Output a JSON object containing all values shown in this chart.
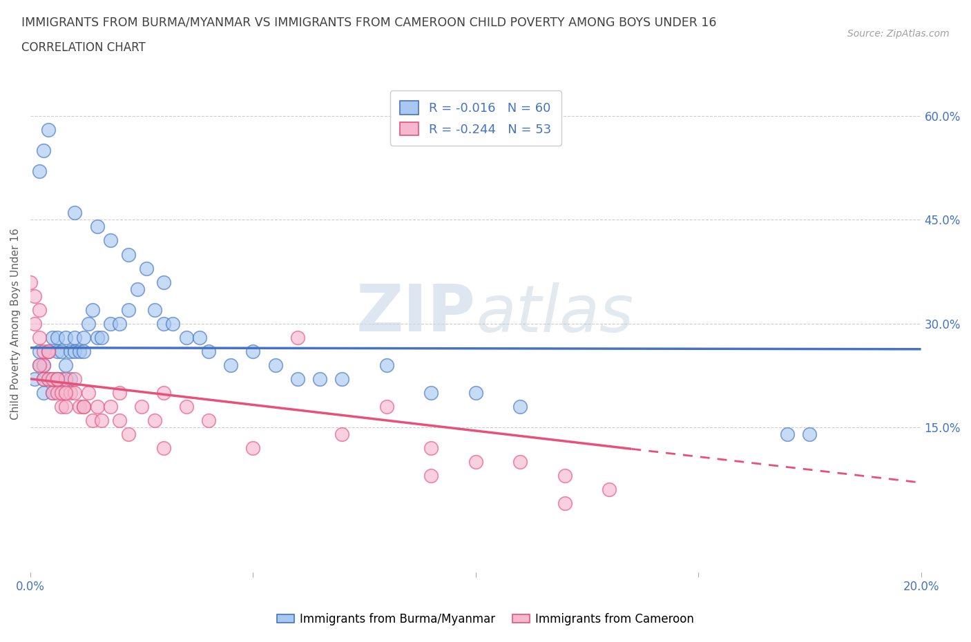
{
  "title_line1": "IMMIGRANTS FROM BURMA/MYANMAR VS IMMIGRANTS FROM CAMEROON CHILD POVERTY AMONG BOYS UNDER 16",
  "title_line2": "CORRELATION CHART",
  "source_text": "Source: ZipAtlas.com",
  "ylabel": "Child Poverty Among Boys Under 16",
  "watermark_zip": "ZIP",
  "watermark_atlas": "atlas",
  "xlim": [
    0.0,
    0.2
  ],
  "ylim": [
    -0.06,
    0.66
  ],
  "legend_r1": "-0.016",
  "legend_n1": "60",
  "legend_r2": "-0.244",
  "legend_n2": "53",
  "color_burma": "#a8c8f0",
  "color_cameroon": "#f5b8cf",
  "color_line_burma": "#4472c4",
  "color_line_cameroon": "#e8507a",
  "grid_color": "#cccccc",
  "background_color": "#ffffff",
  "title_color": "#404040",
  "source_color": "#a0a0a0",
  "tick_color": "#4472c4",
  "ylabel_color": "#606060",
  "burma_trend_y0": 0.265,
  "burma_trend_y1": 0.263,
  "cameroon_trend_y0": 0.22,
  "cameroon_trend_y1": 0.07,
  "burma_x": [
    0.001,
    0.002,
    0.002,
    0.003,
    0.003,
    0.003,
    0.004,
    0.004,
    0.005,
    0.005,
    0.005,
    0.006,
    0.006,
    0.006,
    0.007,
    0.007,
    0.008,
    0.008,
    0.009,
    0.009,
    0.01,
    0.01,
    0.011,
    0.012,
    0.012,
    0.013,
    0.014,
    0.015,
    0.016,
    0.018,
    0.02,
    0.022,
    0.024,
    0.026,
    0.028,
    0.03,
    0.032,
    0.035,
    0.038,
    0.04,
    0.045,
    0.05,
    0.055,
    0.06,
    0.065,
    0.07,
    0.08,
    0.09,
    0.1,
    0.11,
    0.002,
    0.003,
    0.004,
    0.01,
    0.015,
    0.018,
    0.022,
    0.03,
    0.17,
    0.175
  ],
  "burma_y": [
    0.22,
    0.24,
    0.26,
    0.2,
    0.22,
    0.24,
    0.22,
    0.26,
    0.2,
    0.22,
    0.28,
    0.22,
    0.26,
    0.28,
    0.22,
    0.26,
    0.24,
    0.28,
    0.22,
    0.26,
    0.26,
    0.28,
    0.26,
    0.26,
    0.28,
    0.3,
    0.32,
    0.28,
    0.28,
    0.3,
    0.3,
    0.32,
    0.35,
    0.38,
    0.32,
    0.3,
    0.3,
    0.28,
    0.28,
    0.26,
    0.24,
    0.26,
    0.24,
    0.22,
    0.22,
    0.22,
    0.24,
    0.2,
    0.2,
    0.18,
    0.52,
    0.55,
    0.58,
    0.46,
    0.44,
    0.42,
    0.4,
    0.36,
    0.14,
    0.14
  ],
  "cameroon_x": [
    0.0,
    0.001,
    0.001,
    0.002,
    0.002,
    0.003,
    0.003,
    0.003,
    0.004,
    0.004,
    0.005,
    0.005,
    0.006,
    0.006,
    0.007,
    0.007,
    0.008,
    0.008,
    0.009,
    0.01,
    0.01,
    0.011,
    0.012,
    0.013,
    0.014,
    0.015,
    0.016,
    0.018,
    0.02,
    0.022,
    0.025,
    0.028,
    0.03,
    0.035,
    0.04,
    0.05,
    0.06,
    0.07,
    0.08,
    0.09,
    0.1,
    0.11,
    0.12,
    0.13,
    0.002,
    0.004,
    0.006,
    0.008,
    0.012,
    0.02,
    0.03,
    0.09,
    0.12
  ],
  "cameroon_y": [
    0.36,
    0.34,
    0.3,
    0.28,
    0.32,
    0.22,
    0.24,
    0.26,
    0.22,
    0.26,
    0.2,
    0.22,
    0.2,
    0.22,
    0.2,
    0.18,
    0.22,
    0.18,
    0.2,
    0.2,
    0.22,
    0.18,
    0.18,
    0.2,
    0.16,
    0.18,
    0.16,
    0.18,
    0.16,
    0.14,
    0.18,
    0.16,
    0.2,
    0.18,
    0.16,
    0.12,
    0.28,
    0.14,
    0.18,
    0.12,
    0.1,
    0.1,
    0.08,
    0.06,
    0.24,
    0.26,
    0.22,
    0.2,
    0.18,
    0.2,
    0.12,
    0.08,
    0.04
  ]
}
